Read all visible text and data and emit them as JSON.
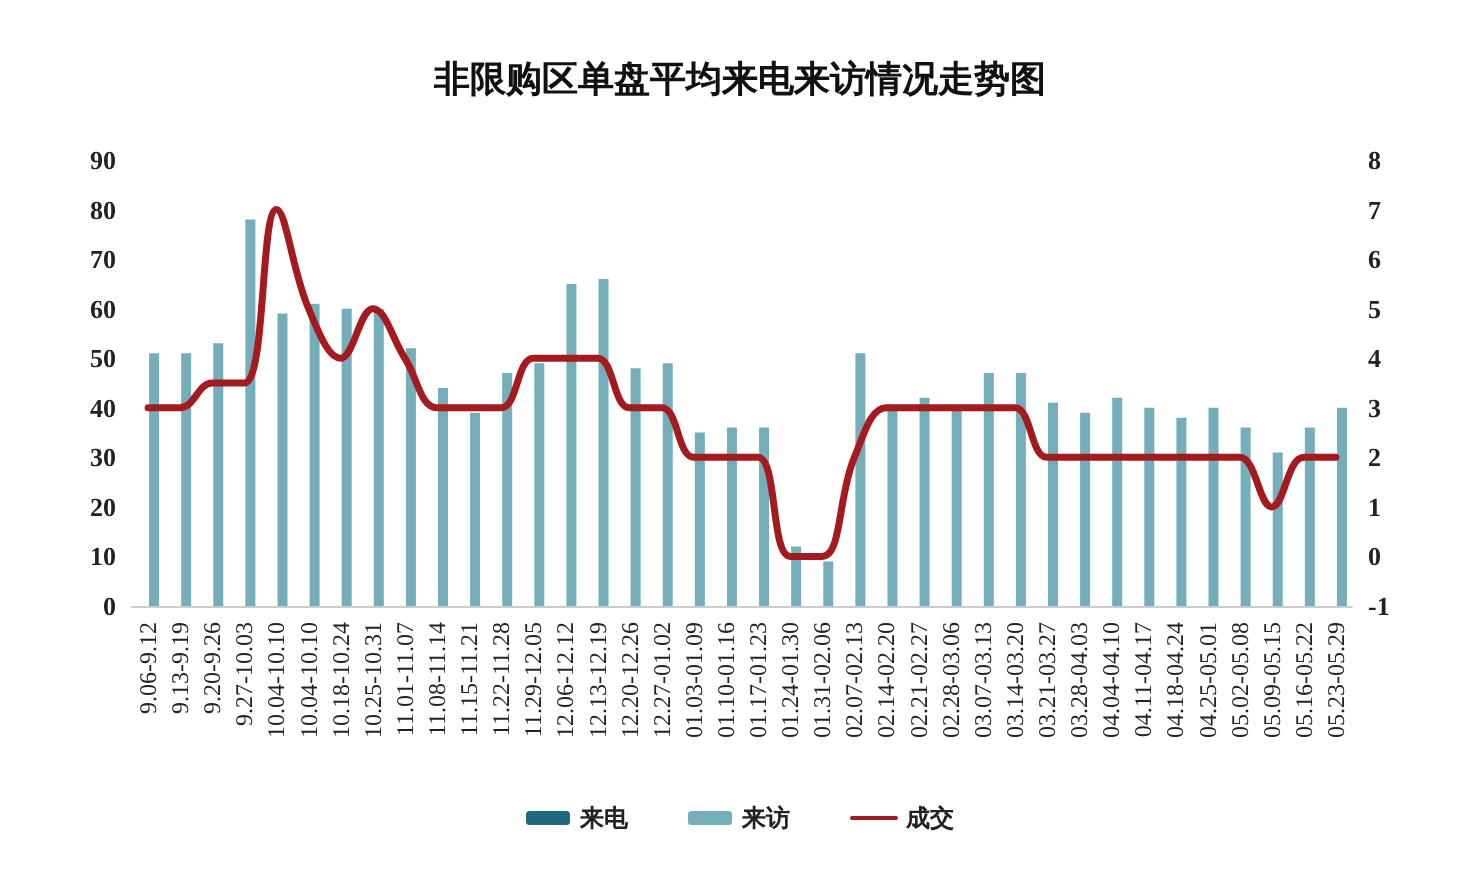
{
  "chart_data": {
    "type": "bar",
    "title": "非限购区单盘平均来电来访情况走势图",
    "categories": [
      "9.06-9.12",
      "9.13-9.19",
      "9.20-9.26",
      "9.27-10.03",
      "10.04-10.10",
      "10.04-10.10",
      "10.18-10.24",
      "10.25-10.31",
      "11.01-11.07",
      "11.08-11.14",
      "11.15-11.21",
      "11.22-11.28",
      "11.29-12.05",
      "12.06-12.12",
      "12.13-12.19",
      "12.20-12.26",
      "12.27-01.02",
      "01.03-01.09",
      "01.10-01.16",
      "01.17-01.23",
      "01.24-01.30",
      "01.31-02.06",
      "02.07-02.13",
      "02.14-02.20",
      "02.21-02.27",
      "02.28-03.06",
      "03.07-03.13",
      "03.14-03.20",
      "03.21-03.27",
      "03.28-04.03",
      "04.04-04.10",
      "04.11-04.17",
      "04.18-04.24",
      "04.25-05.01",
      "05.02-05.08",
      "05.09-05.15",
      "05.16-05.22",
      "05.23-05.29"
    ],
    "series": [
      {
        "name": "来电",
        "color": "#1f6b7d",
        "values": [
          null,
          null,
          null,
          null,
          null,
          null,
          null,
          null,
          null,
          null,
          null,
          null,
          null,
          null,
          null,
          null,
          null,
          null,
          null,
          null,
          null,
          null,
          null,
          null,
          null,
          null,
          null,
          null,
          null,
          null,
          null,
          null,
          null,
          null,
          null,
          null,
          null,
          null
        ]
      },
      {
        "name": "来访",
        "color": "#74aebb",
        "values": [
          51,
          51,
          53,
          78,
          59,
          61,
          60,
          60,
          52,
          44,
          39,
          47,
          49,
          65,
          66,
          48,
          49,
          35,
          36,
          36,
          12,
          9,
          51,
          40,
          42,
          40,
          47,
          47,
          41,
          39,
          42,
          40,
          38,
          40,
          36,
          31,
          36,
          40
        ]
      },
      {
        "name": "成交",
        "type": "line",
        "axis": "y2",
        "color": "#a31b1f",
        "values": [
          3,
          3,
          3.5,
          3.5,
          7,
          5,
          4,
          5,
          4,
          3,
          3,
          3,
          4,
          4,
          4,
          3,
          3,
          2,
          2,
          2,
          0,
          0,
          2,
          3,
          3,
          3,
          3,
          3,
          2,
          2,
          2,
          2,
          2,
          2,
          2,
          1,
          2,
          2
        ]
      }
    ],
    "ylim": [
      0,
      90
    ],
    "yticks": [
      0,
      10,
      20,
      30,
      40,
      50,
      60,
      70,
      80,
      90
    ],
    "y2lim": [
      -1,
      8
    ],
    "y2ticks": [
      -1,
      0,
      1,
      2,
      3,
      4,
      5,
      6,
      7,
      8
    ],
    "grid": false,
    "legend": "bottom",
    "marker": "none",
    "line_style": "solid"
  }
}
